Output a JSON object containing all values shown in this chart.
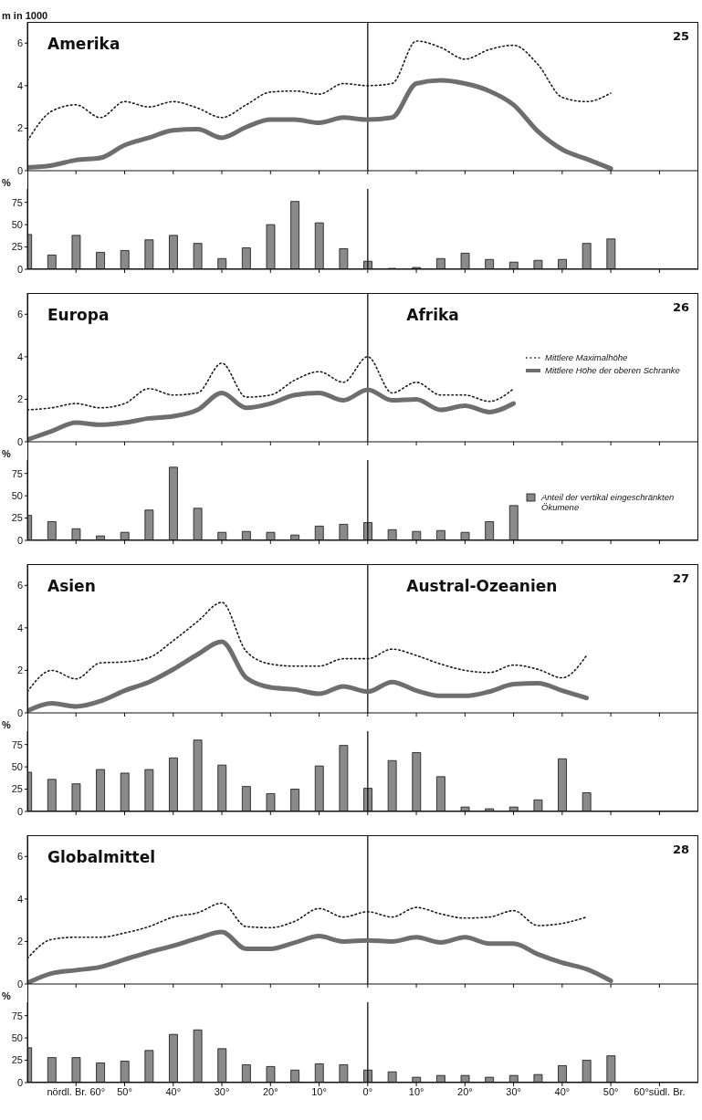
{
  "chart_data": [
    {
      "type": "line",
      "ylabel": "m in 1000",
      "annotations": [
        "Amerika",
        "25"
      ],
      "x": [
        70,
        65,
        60,
        55,
        50,
        45,
        40,
        35,
        30,
        25,
        20,
        15,
        10,
        5,
        0,
        -5,
        -10,
        -15,
        -20,
        -25,
        -30,
        -35,
        -40,
        -45,
        -50
      ],
      "xlim": [
        70,
        -68
      ],
      "xticks": [
        {
          "value": 60,
          "label": null
        },
        {
          "value": 50,
          "label": null
        },
        {
          "value": 40,
          "label": null
        },
        {
          "value": 30,
          "label": null
        },
        {
          "value": 20,
          "label": null
        },
        {
          "value": 10,
          "label": null
        },
        {
          "value": 0,
          "label": null
        },
        {
          "value": -10,
          "label": null
        },
        {
          "value": -20,
          "label": null
        },
        {
          "value": -30,
          "label": null
        },
        {
          "value": -40,
          "label": null
        },
        {
          "value": -50,
          "label": null
        },
        {
          "value": -60,
          "label": null
        }
      ],
      "ylim": [
        0,
        7
      ],
      "yticks": [
        0,
        2,
        4,
        6
      ],
      "tick_labels": "y",
      "marker": "none",
      "ref_lines": [
        {
          "axis": "x",
          "value": 0
        }
      ],
      "series": [
        {
          "color": "#1a1a1a",
          "line_style": "dotted",
          "values": [
            1.4,
            2.8,
            3.1,
            2.5,
            3.25,
            3.0,
            3.25,
            2.95,
            2.5,
            3.1,
            3.7,
            3.75,
            3.6,
            4.1,
            4.0,
            4.1,
            6.1,
            5.8,
            5.25,
            5.7,
            5.9,
            5.0,
            3.45,
            3.25,
            3.65
          ]
        },
        {
          "color": "#6e6e6e",
          "line_style": "solid",
          "values": [
            0.15,
            0.25,
            0.5,
            0.6,
            1.2,
            1.55,
            1.9,
            1.95,
            1.55,
            2.05,
            2.4,
            2.4,
            2.25,
            2.5,
            2.4,
            2.5,
            4.1,
            4.25,
            4.1,
            3.75,
            3.1,
            1.85,
            1.0,
            0.55,
            0.1
          ]
        }
      ]
    },
    {
      "type": "bar",
      "ylabel": "%",
      "x": [
        70,
        65,
        60,
        55,
        50,
        45,
        40,
        35,
        30,
        25,
        20,
        15,
        10,
        5,
        0,
        -5,
        -10,
        -15,
        -20,
        -25,
        -30,
        -35,
        -40,
        -45,
        -50
      ],
      "xlim": [
        70,
        -68
      ],
      "xticks": [
        {
          "value": 60,
          "label": null
        },
        {
          "value": 50,
          "label": null
        },
        {
          "value": 40,
          "label": null
        },
        {
          "value": 30,
          "label": null
        },
        {
          "value": 20,
          "label": null
        },
        {
          "value": 10,
          "label": null
        },
        {
          "value": 0,
          "label": null
        },
        {
          "value": -10,
          "label": null
        },
        {
          "value": -20,
          "label": null
        },
        {
          "value": -30,
          "label": null
        },
        {
          "value": -40,
          "label": null
        },
        {
          "value": -50,
          "label": null
        },
        {
          "value": -60,
          "label": null
        }
      ],
      "ylim": [
        0,
        90
      ],
      "yticks": [
        0,
        25,
        50,
        75
      ],
      "tick_labels": "y",
      "ref_lines": [
        {
          "axis": "x",
          "value": 0
        }
      ],
      "series": [
        {
          "color": "#8a8a8a",
          "values": [
            39,
            16,
            38,
            19,
            21,
            33,
            38,
            29,
            12,
            24,
            50,
            76,
            52,
            23,
            9,
            1,
            2,
            12,
            18,
            11,
            8,
            10,
            11,
            29,
            34
          ]
        }
      ]
    },
    {
      "type": "line",
      "annotations": [
        "Europa",
        "Afrika",
        "26"
      ],
      "legend": "right",
      "x": [
        70,
        65,
        60,
        55,
        50,
        45,
        40,
        35,
        30,
        25,
        20,
        15,
        10,
        5,
        0,
        -5,
        -10,
        -15,
        -20,
        -25,
        -30
      ],
      "xlim": [
        70,
        -68
      ],
      "xticks": [
        {
          "value": 60,
          "label": null
        },
        {
          "value": 50,
          "label": null
        },
        {
          "value": 40,
          "label": null
        },
        {
          "value": 30,
          "label": null
        },
        {
          "value": 20,
          "label": null
        },
        {
          "value": 10,
          "label": null
        },
        {
          "value": 0,
          "label": null
        },
        {
          "value": -10,
          "label": null
        },
        {
          "value": -20,
          "label": null
        },
        {
          "value": -30,
          "label": null
        },
        {
          "value": -40,
          "label": null
        },
        {
          "value": -50,
          "label": null
        },
        {
          "value": -60,
          "label": null
        }
      ],
      "ylim": [
        0,
        7
      ],
      "yticks": [
        0,
        2,
        4,
        6
      ],
      "tick_labels": "y",
      "marker": "none",
      "ref_lines": [
        {
          "axis": "x",
          "value": 0
        }
      ],
      "series": [
        {
          "name": "Mittlere Maximalhöhe",
          "color": "#1a1a1a",
          "line_style": "dotted",
          "values": [
            1.5,
            1.6,
            1.8,
            1.6,
            1.8,
            2.5,
            2.2,
            2.3,
            3.7,
            2.1,
            2.2,
            2.9,
            3.3,
            2.8,
            4.0,
            2.3,
            2.8,
            2.2,
            2.2,
            1.9,
            2.5
          ]
        },
        {
          "name": "Mittlere Höhe der oberen Schranke",
          "color": "#6e6e6e",
          "line_style": "solid",
          "values": [
            0.1,
            0.5,
            0.9,
            0.8,
            0.9,
            1.1,
            1.2,
            1.5,
            2.3,
            1.6,
            1.8,
            2.2,
            2.3,
            1.95,
            2.45,
            1.95,
            2.0,
            1.5,
            1.7,
            1.4,
            1.8
          ]
        }
      ]
    },
    {
      "type": "bar",
      "ylabel": "%",
      "legend": "right",
      "x": [
        70,
        65,
        60,
        55,
        50,
        45,
        40,
        35,
        30,
        25,
        20,
        15,
        10,
        5,
        0,
        -5,
        -10,
        -15,
        -20,
        -25,
        -30
      ],
      "xlim": [
        70,
        -68
      ],
      "xticks": [
        {
          "value": 60,
          "label": null
        },
        {
          "value": 50,
          "label": null
        },
        {
          "value": 40,
          "label": null
        },
        {
          "value": 30,
          "label": null
        },
        {
          "value": 20,
          "label": null
        },
        {
          "value": 10,
          "label": null
        },
        {
          "value": 0,
          "label": null
        },
        {
          "value": -10,
          "label": null
        },
        {
          "value": -20,
          "label": null
        },
        {
          "value": -30,
          "label": null
        },
        {
          "value": -40,
          "label": null
        },
        {
          "value": -50,
          "label": null
        },
        {
          "value": -60,
          "label": null
        }
      ],
      "ylim": [
        0,
        90
      ],
      "yticks": [
        0,
        25,
        50,
        75
      ],
      "tick_labels": "y",
      "ref_lines": [
        {
          "axis": "x",
          "value": 0
        }
      ],
      "series": [
        {
          "name": "Anteil der vertikal eingeschränkten Ökumene",
          "color": "#8a8a8a",
          "values": [
            28,
            21,
            13,
            5,
            9,
            34,
            82,
            36,
            9,
            10,
            9,
            6,
            16,
            18,
            20,
            12,
            10,
            11,
            9,
            21,
            39
          ]
        }
      ]
    },
    {
      "type": "line",
      "annotations": [
        "Asien",
        "Austral-Ozeanien",
        "27"
      ],
      "x": [
        70,
        65,
        60,
        55,
        50,
        45,
        40,
        35,
        30,
        25,
        20,
        15,
        10,
        5,
        0,
        -5,
        -10,
        -15,
        -20,
        -25,
        -30,
        -35,
        -40,
        -45
      ],
      "xlim": [
        70,
        -68
      ],
      "xticks": [
        {
          "value": 60,
          "label": null
        },
        {
          "value": 50,
          "label": null
        },
        {
          "value": 40,
          "label": null
        },
        {
          "value": 30,
          "label": null
        },
        {
          "value": 20,
          "label": null
        },
        {
          "value": 10,
          "label": null
        },
        {
          "value": 0,
          "label": null
        },
        {
          "value": -10,
          "label": null
        },
        {
          "value": -20,
          "label": null
        },
        {
          "value": -30,
          "label": null
        },
        {
          "value": -40,
          "label": null
        },
        {
          "value": -50,
          "label": null
        },
        {
          "value": -60,
          "label": null
        }
      ],
      "ylim": [
        0,
        7
      ],
      "yticks": [
        0,
        2,
        4,
        6
      ],
      "tick_labels": "y",
      "marker": "none",
      "ref_lines": [
        {
          "axis": "x",
          "value": 0
        }
      ],
      "series": [
        {
          "color": "#1a1a1a",
          "line_style": "dotted",
          "values": [
            1.0,
            2.0,
            1.6,
            2.35,
            2.4,
            2.6,
            3.4,
            4.3,
            5.2,
            2.9,
            2.3,
            2.2,
            2.2,
            2.55,
            2.55,
            3.0,
            2.7,
            2.3,
            2.0,
            1.9,
            2.25,
            2.05,
            1.65,
            2.7
          ]
        },
        {
          "color": "#6e6e6e",
          "line_style": "solid",
          "values": [
            0.1,
            0.45,
            0.3,
            0.55,
            1.05,
            1.45,
            2.05,
            2.75,
            3.35,
            1.65,
            1.2,
            1.1,
            0.9,
            1.25,
            1.0,
            1.45,
            1.05,
            0.8,
            0.8,
            1.0,
            1.35,
            1.4,
            1.05,
            0.7
          ]
        }
      ]
    },
    {
      "type": "bar",
      "ylabel": "%",
      "x": [
        70,
        65,
        60,
        55,
        50,
        45,
        40,
        35,
        30,
        25,
        20,
        15,
        10,
        5,
        0,
        -5,
        -10,
        -15,
        -20,
        -25,
        -30,
        -35,
        -40,
        -45
      ],
      "xlim": [
        70,
        -68
      ],
      "xticks": [
        {
          "value": 60,
          "label": null
        },
        {
          "value": 50,
          "label": null
        },
        {
          "value": 40,
          "label": null
        },
        {
          "value": 30,
          "label": null
        },
        {
          "value": 20,
          "label": null
        },
        {
          "value": 10,
          "label": null
        },
        {
          "value": 0,
          "label": null
        },
        {
          "value": -10,
          "label": null
        },
        {
          "value": -20,
          "label": null
        },
        {
          "value": -30,
          "label": null
        },
        {
          "value": -40,
          "label": null
        },
        {
          "value": -50,
          "label": null
        },
        {
          "value": -60,
          "label": null
        }
      ],
      "ylim": [
        0,
        90
      ],
      "yticks": [
        0,
        25,
        50,
        75
      ],
      "tick_labels": "y",
      "ref_lines": [
        {
          "axis": "x",
          "value": 0
        }
      ],
      "series": [
        {
          "color": "#8a8a8a",
          "values": [
            44,
            36,
            31,
            47,
            43,
            47,
            60,
            80,
            52,
            28,
            20,
            25,
            51,
            74,
            26,
            57,
            66,
            39,
            5,
            3,
            5,
            13,
            59,
            21
          ]
        }
      ]
    },
    {
      "type": "line",
      "annotations": [
        "Globalmittel",
        "28"
      ],
      "x": [
        70,
        65,
        60,
        55,
        50,
        45,
        40,
        35,
        30,
        25,
        20,
        15,
        10,
        5,
        0,
        -5,
        -10,
        -15,
        -20,
        -25,
        -30,
        -35,
        -40,
        -45,
        -50
      ],
      "xlim": [
        70,
        -68
      ],
      "xticks": [
        {
          "value": 60,
          "label": null
        },
        {
          "value": 50,
          "label": null
        },
        {
          "value": 40,
          "label": null
        },
        {
          "value": 30,
          "label": null
        },
        {
          "value": 20,
          "label": null
        },
        {
          "value": 10,
          "label": null
        },
        {
          "value": 0,
          "label": null
        },
        {
          "value": -10,
          "label": null
        },
        {
          "value": -20,
          "label": null
        },
        {
          "value": -30,
          "label": null
        },
        {
          "value": -40,
          "label": null
        },
        {
          "value": -50,
          "label": null
        },
        {
          "value": -60,
          "label": null
        }
      ],
      "ylim": [
        0,
        7
      ],
      "yticks": [
        0,
        2,
        4,
        6
      ],
      "tick_labels": "y",
      "marker": "none",
      "ref_lines": [
        {
          "axis": "x",
          "value": 0
        }
      ],
      "series": [
        {
          "color": "#1a1a1a",
          "line_style": "dotted",
          "values": [
            1.2,
            2.1,
            2.2,
            2.2,
            2.4,
            2.7,
            3.15,
            3.35,
            3.8,
            2.7,
            2.65,
            2.95,
            3.55,
            3.15,
            3.4,
            3.15,
            3.6,
            3.3,
            3.1,
            3.15,
            3.45,
            2.75,
            2.85,
            3.15,
            null
          ]
        },
        {
          "color": "#6e6e6e",
          "line_style": "solid",
          "values": [
            0.05,
            0.5,
            0.65,
            0.8,
            1.15,
            1.5,
            1.8,
            2.15,
            2.45,
            1.65,
            1.65,
            1.95,
            2.25,
            2.0,
            2.05,
            2.0,
            2.2,
            1.95,
            2.2,
            1.9,
            1.9,
            1.4,
            1.0,
            0.7,
            0.15
          ]
        }
      ]
    },
    {
      "type": "bar",
      "ylabel": "%",
      "x": [
        70,
        65,
        60,
        55,
        50,
        45,
        40,
        35,
        30,
        25,
        20,
        15,
        10,
        5,
        0,
        -5,
        -10,
        -15,
        -20,
        -25,
        -30,
        -35,
        -40,
        -45,
        -50
      ],
      "xlim": [
        70,
        -68
      ],
      "xticks": [
        {
          "value": 60,
          "label": "nördl. Br. 60°"
        },
        {
          "value": 50,
          "label": "50°"
        },
        {
          "value": 40,
          "label": "40°"
        },
        {
          "value": 30,
          "label": "30°"
        },
        {
          "value": 20,
          "label": "20°"
        },
        {
          "value": 10,
          "label": "10°"
        },
        {
          "value": 0,
          "label": "0°"
        },
        {
          "value": -10,
          "label": "10°"
        },
        {
          "value": -20,
          "label": "20°"
        },
        {
          "value": -30,
          "label": "30°"
        },
        {
          "value": -40,
          "label": "40°"
        },
        {
          "value": -50,
          "label": "50°"
        },
        {
          "value": -60,
          "label": "60°südl. Br."
        }
      ],
      "ylim": [
        0,
        90
      ],
      "yticks": [
        0,
        25,
        50,
        75
      ],
      "ref_lines": [
        {
          "axis": "x",
          "value": 0
        }
      ],
      "series": [
        {
          "color": "#8a8a8a",
          "values": [
            39,
            28,
            28,
            22,
            24,
            36,
            54,
            59,
            38,
            20,
            18,
            14,
            21,
            20,
            14,
            12,
            6,
            8,
            8,
            6,
            8,
            9,
            19,
            25,
            30
          ]
        }
      ]
    }
  ]
}
